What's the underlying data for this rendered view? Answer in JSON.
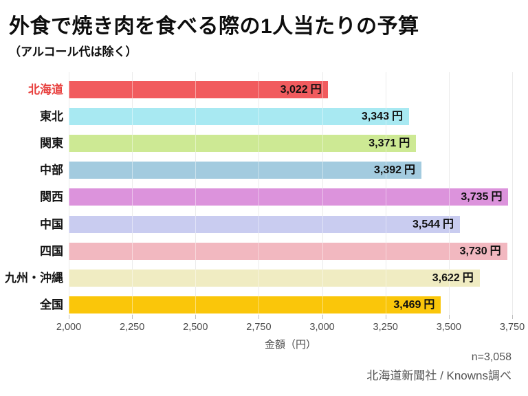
{
  "header": {
    "title": "外食で焼き肉を食べる際の1人当たりの予算",
    "subtitle": "（アルコール代は除く）"
  },
  "chart_data": {
    "type": "bar",
    "orientation": "horizontal",
    "title": "外食で焼き肉を食べる際の1人当たりの予算",
    "subtitle": "（アルコール代は除く）",
    "categories": [
      "北海道",
      "東北",
      "関東",
      "中部",
      "関西",
      "中国",
      "四国",
      "九州・沖縄",
      "全国"
    ],
    "values": [
      3022,
      3343,
      3371,
      3392,
      3735,
      3544,
      3730,
      3622,
      3469
    ],
    "value_labels": [
      "3,022",
      "3,343",
      "3,371",
      "3,392",
      "3,735",
      "3,544",
      "3,730",
      "3,622",
      "3,469"
    ],
    "unit": "円",
    "bar_colors": [
      "#F15B5E",
      "#A8E9F2",
      "#CDE994",
      "#A3CBDF",
      "#DC93DC",
      "#C9CCF0",
      "#F2B8C0",
      "#F0ECC2",
      "#FAC60A"
    ],
    "category_label_colors": [
      "#E8403E",
      "#141414",
      "#141414",
      "#141414",
      "#141414",
      "#141414",
      "#141414",
      "#141414",
      "#141414"
    ],
    "xlabel": "金額（円）",
    "xlim": [
      2000,
      3750
    ],
    "grid": true,
    "ticks": {
      "values": [
        2000,
        2250,
        2500,
        2750,
        3000,
        3250,
        3500,
        3750
      ],
      "labels": [
        "2,000",
        "2,250",
        "2,500",
        "2,750",
        "3,000",
        "3,250",
        "3,500",
        "3,750"
      ]
    }
  },
  "footer": {
    "sample_size": "n=3,058",
    "source": "北海道新聞社 / Knowns調べ"
  }
}
